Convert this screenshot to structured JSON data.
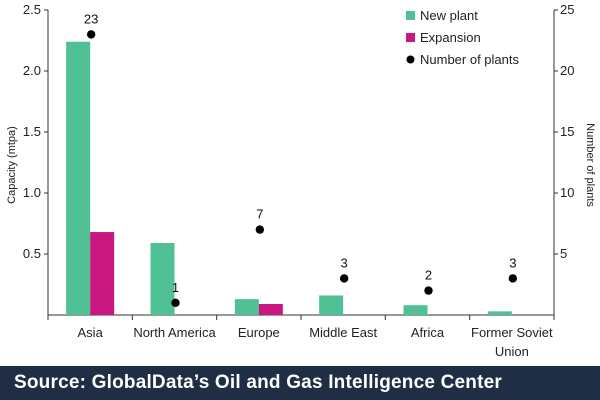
{
  "chart_data": {
    "type": "bar",
    "categories": [
      "Asia",
      "North America",
      "Europe",
      "Middle East",
      "Africa",
      "Former Soviet Union"
    ],
    "category_lines": [
      [
        "Asia"
      ],
      [
        "North America"
      ],
      [
        "Europe"
      ],
      [
        "Middle East"
      ],
      [
        "Africa"
      ],
      [
        "Former Soviet",
        "Union"
      ]
    ],
    "series": [
      {
        "name": "New plant",
        "values": [
          2.24,
          0.59,
          0.13,
          0.16,
          0.08,
          0.03
        ],
        "color": "#4fc195"
      },
      {
        "name": "Expansion",
        "values": [
          0.68,
          0,
          0.09,
          0,
          0,
          0
        ],
        "color": "#c8177e"
      }
    ],
    "points": {
      "name": "Number of plants",
      "values": [
        23,
        1,
        7,
        3,
        2,
        3
      ],
      "labels": [
        "23",
        "1",
        "7",
        "3",
        "2",
        "3"
      ],
      "color": "#000000"
    },
    "xlabel": "",
    "ylabel": "Capacity (mtpa)",
    "ylim": [
      0,
      2.5
    ],
    "yticks": [
      "0.5",
      "1.0",
      "1.5",
      "2.0",
      "2.5"
    ],
    "y2label": "Number of plants",
    "y2lim": [
      0,
      25
    ],
    "y2ticks": [
      "5",
      "10",
      "15",
      "20",
      "25"
    ],
    "grid": false,
    "legend": "top-right"
  },
  "footer": {
    "source": "Source:  GlobalData’s Oil and Gas Intelligence Center"
  }
}
